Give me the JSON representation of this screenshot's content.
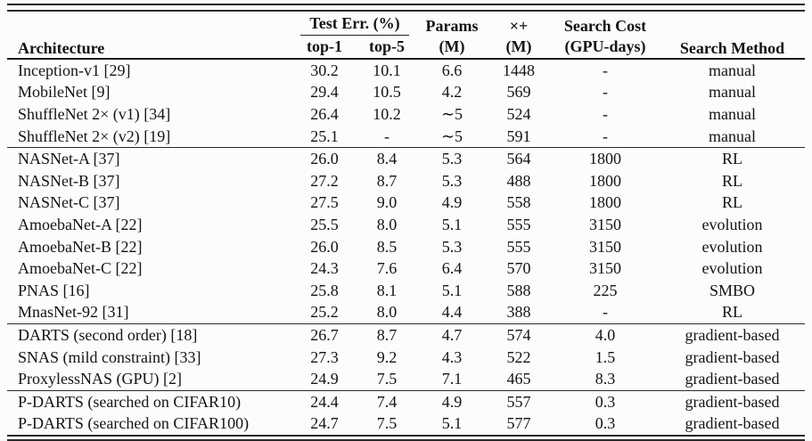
{
  "colors": {
    "background": "#fcfcfb",
    "text": "#141414",
    "rule": "#1a1a1a"
  },
  "header": {
    "architecture": "Architecture",
    "test_err_group": "Test Err. (%)",
    "top1": "top-1",
    "top5": "top-5",
    "params_l1": "Params",
    "params_l2": "(M)",
    "multadds_l1": "×+",
    "multadds_l2": "(M)",
    "search_cost_l1": "Search Cost",
    "search_cost_l2": "(GPU-days)",
    "search_method": "Search Method"
  },
  "rows": [
    {
      "arch": "Inception-v1 [29]",
      "top1": "30.2",
      "top5": "10.1",
      "params": "6.6",
      "multadds": "1448",
      "cost": "-",
      "method": "manual"
    },
    {
      "arch": "MobileNet [9]",
      "top1": "29.4",
      "top5": "10.5",
      "params": "4.2",
      "multadds": "569",
      "cost": "-",
      "method": "manual"
    },
    {
      "arch": "ShuffleNet 2× (v1) [34]",
      "top1": "26.4",
      "top5": "10.2",
      "params": "∼5",
      "multadds": "524",
      "cost": "-",
      "method": "manual"
    },
    {
      "arch": "ShuffleNet 2× (v2) [19]",
      "top1": "25.1",
      "top5": "-",
      "params": "∼5",
      "multadds": "591",
      "cost": "-",
      "method": "manual"
    },
    {
      "arch": "NASNet-A [37]",
      "top1": "26.0",
      "top5": "8.4",
      "params": "5.3",
      "multadds": "564",
      "cost": "1800",
      "method": "RL"
    },
    {
      "arch": "NASNet-B [37]",
      "top1": "27.2",
      "top5": "8.7",
      "params": "5.3",
      "multadds": "488",
      "cost": "1800",
      "method": "RL"
    },
    {
      "arch": "NASNet-C [37]",
      "top1": "27.5",
      "top5": "9.0",
      "params": "4.9",
      "multadds": "558",
      "cost": "1800",
      "method": "RL"
    },
    {
      "arch": "AmoebaNet-A [22]",
      "top1": "25.5",
      "top5": "8.0",
      "params": "5.1",
      "multadds": "555",
      "cost": "3150",
      "method": "evolution"
    },
    {
      "arch": "AmoebaNet-B [22]",
      "top1": "26.0",
      "top5": "8.5",
      "params": "5.3",
      "multadds": "555",
      "cost": "3150",
      "method": "evolution"
    },
    {
      "arch": "AmoebaNet-C [22]",
      "top1": "24.3",
      "top5": "7.6",
      "params": "6.4",
      "multadds": "570",
      "cost": "3150",
      "method": "evolution"
    },
    {
      "arch": "PNAS [16]",
      "top1": "25.8",
      "top5": "8.1",
      "params": "5.1",
      "multadds": "588",
      "cost": "225",
      "method": "SMBO"
    },
    {
      "arch": "MnasNet-92 [31]",
      "top1": "25.2",
      "top5": "8.0",
      "params": "4.4",
      "multadds": "388",
      "cost": "-",
      "method": "RL"
    },
    {
      "arch": "DARTS (second order) [18]",
      "top1": "26.7",
      "top5": "8.7",
      "params": "4.7",
      "multadds": "574",
      "cost": "4.0",
      "method": "gradient-based"
    },
    {
      "arch": "SNAS (mild constraint) [33]",
      "top1": "27.3",
      "top5": "9.2",
      "params": "4.3",
      "multadds": "522",
      "cost": "1.5",
      "method": "gradient-based"
    },
    {
      "arch": "ProxylessNAS (GPU) [2]",
      "top1": "24.9",
      "top5": "7.5",
      "params": "7.1",
      "multadds": "465",
      "cost": "8.3",
      "method": "gradient-based"
    },
    {
      "arch": "P-DARTS (searched on CIFAR10)",
      "top1": "24.4",
      "top5": "7.4",
      "params": "4.9",
      "multadds": "557",
      "cost": "0.3",
      "method": "gradient-based"
    },
    {
      "arch": "P-DARTS (searched on CIFAR100)",
      "top1": "24.7",
      "top5": "7.5",
      "params": "5.1",
      "multadds": "577",
      "cost": "0.3",
      "method": "gradient-based"
    }
  ]
}
